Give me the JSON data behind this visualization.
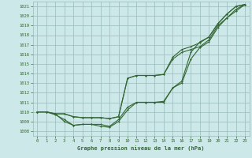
{
  "title": "Graphe pression niveau de la mer (hPa)",
  "bg_color": "#cce8e8",
  "grid_color": "#99bbbb",
  "line_color": "#336633",
  "xlim": [
    -0.5,
    23.5
  ],
  "ylim": [
    1007.5,
    1021.5
  ],
  "xticks": [
    0,
    1,
    2,
    3,
    4,
    5,
    6,
    7,
    8,
    9,
    10,
    11,
    12,
    13,
    14,
    15,
    16,
    17,
    18,
    19,
    20,
    21,
    22,
    23
  ],
  "yticks": [
    1008,
    1009,
    1010,
    1011,
    1012,
    1013,
    1014,
    1015,
    1016,
    1017,
    1018,
    1019,
    1020,
    1021
  ],
  "series": [
    [
      1010.0,
      1010.0,
      1009.8,
      1009.0,
      1008.6,
      1008.7,
      1008.7,
      1008.7,
      1008.5,
      1009.2,
      1010.5,
      1011.0,
      1011.0,
      1011.0,
      1011.0,
      1012.5,
      1013.2,
      1016.2,
      1017.3,
      1017.8,
      1019.2,
      1020.2,
      1021.0,
      1021.2
    ],
    [
      1010.0,
      1010.0,
      1009.8,
      1009.8,
      1009.5,
      1009.4,
      1009.4,
      1009.4,
      1009.3,
      1009.5,
      1013.5,
      1013.8,
      1013.8,
      1013.8,
      1013.9,
      1015.5,
      1016.2,
      1016.5,
      1016.8,
      1017.5,
      1019.0,
      1019.8,
      1020.7,
      1021.2
    ],
    [
      1010.0,
      1010.0,
      1009.8,
      1009.8,
      1009.5,
      1009.4,
      1009.4,
      1009.4,
      1009.3,
      1009.5,
      1013.5,
      1013.8,
      1013.8,
      1013.8,
      1013.9,
      1015.7,
      1016.5,
      1016.8,
      1017.2,
      1017.8,
      1019.2,
      1020.2,
      1021.0,
      1021.2
    ],
    [
      1010.0,
      1010.0,
      1009.7,
      1009.2,
      1008.6,
      1008.7,
      1008.7,
      1008.5,
      1008.4,
      1009.0,
      1010.2,
      1011.0,
      1011.0,
      1011.0,
      1011.1,
      1012.5,
      1013.0,
      1015.5,
      1016.7,
      1017.3,
      1018.8,
      1019.8,
      1020.5,
      1021.2
    ]
  ]
}
